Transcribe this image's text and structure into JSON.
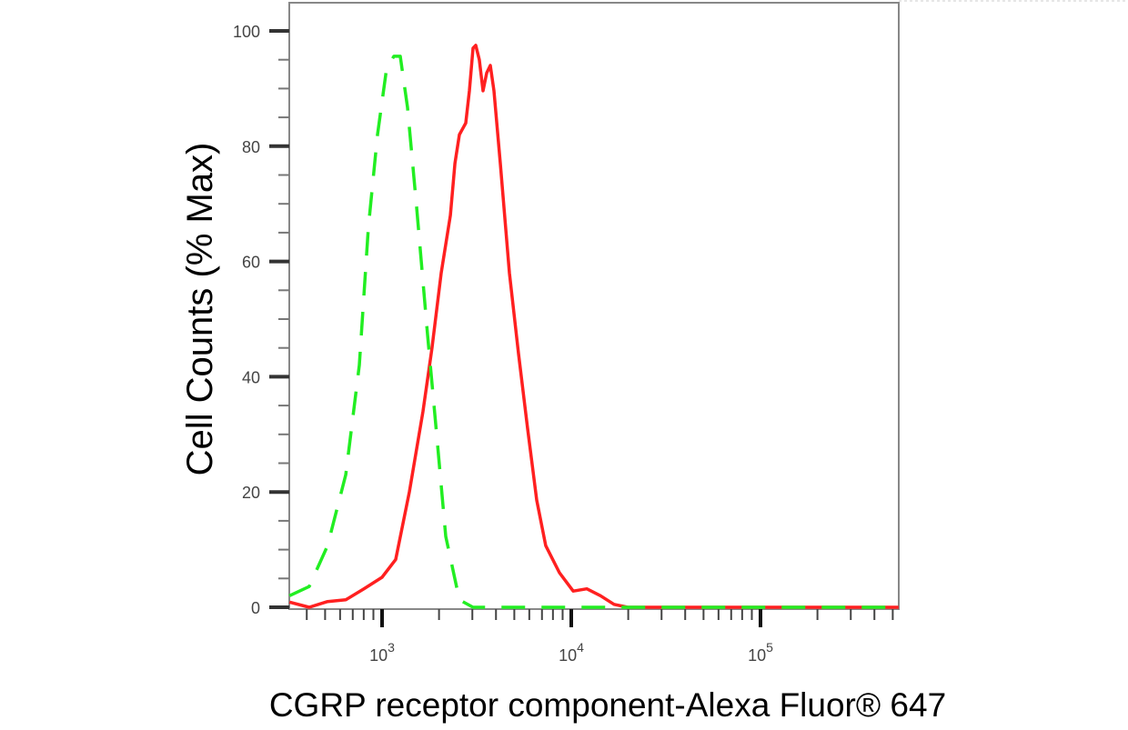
{
  "chart_data": {
    "type": "line",
    "title": "",
    "xlabel": "CGRP receptor component-Alexa Fluor® 647",
    "ylabel": "Cell Counts (% Max)",
    "xscale": "log",
    "xlim": [
      324,
      550000
    ],
    "ylim": [
      0,
      105
    ],
    "grid": false,
    "legend": "none",
    "x_ticks": [
      {
        "value": 1000,
        "base": "10",
        "exp": "3"
      },
      {
        "value": 10000,
        "base": "10",
        "exp": "4"
      },
      {
        "value": 100000,
        "base": "10",
        "exp": "5"
      }
    ],
    "y_ticks": [
      "0",
      "20",
      "40",
      "60",
      "80",
      "100"
    ],
    "series": [
      {
        "color": "#ff2020",
        "style": "solid",
        "x": [
          324,
          412,
          515,
          643,
          801,
          1000,
          1181,
          1394,
          1645,
          1837,
          2054,
          2296,
          2426,
          2563,
          2768,
          2895,
          3026,
          3127,
          3267,
          3418,
          3573,
          3734,
          3902,
          4217,
          4710,
          5263,
          5877,
          6563,
          7330,
          8664,
          10240,
          12080,
          14260,
          16830,
          19870,
          537000
        ],
        "y": [
          0.9,
          0,
          1,
          1.3,
          3.2,
          5.2,
          8.3,
          20,
          34,
          45,
          58,
          68,
          77,
          82,
          84,
          89.6,
          97,
          97.5,
          95,
          89.6,
          92.7,
          94,
          89.6,
          77,
          58,
          44,
          31,
          18.6,
          10.7,
          6,
          2.8,
          3.2,
          2,
          0.5,
          0,
          0
        ]
      },
      {
        "color": "#22ee22",
        "style": "dashed",
        "x": [
          324,
          412,
          515,
          643,
          758,
          847,
          946,
          1057,
          1155,
          1248,
          1363,
          1523,
          1739,
          1943,
          2171,
          2563,
          3026,
          537000
        ],
        "y": [
          2,
          3.6,
          10.7,
          23,
          42,
          66,
          82,
          93.5,
          95.6,
          95.6,
          86.7,
          69.4,
          47.3,
          30,
          12.3,
          1.3,
          0,
          0
        ]
      }
    ]
  }
}
